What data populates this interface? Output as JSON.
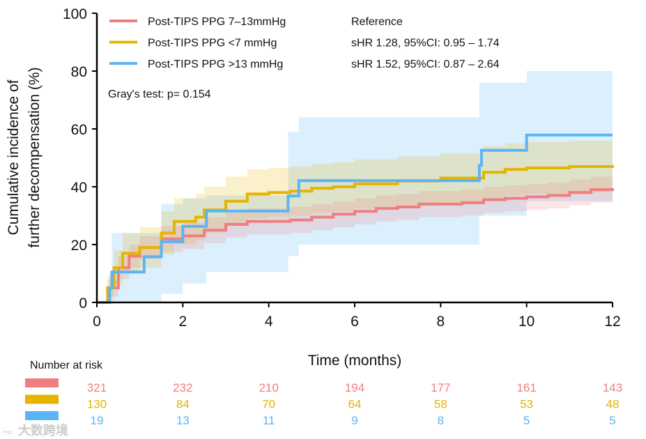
{
  "chart_data": {
    "type": "line",
    "subtype": "step cumulative incidence with 95% CI bands",
    "xlabel": "Time (months)",
    "ylabel_lines": [
      "Cumulative incidence of",
      "further decompensation (%)"
    ],
    "xlim": [
      0,
      12
    ],
    "ylim": [
      0,
      100
    ],
    "xticks": [
      0,
      2,
      4,
      6,
      8,
      10,
      12
    ],
    "yticks": [
      0,
      20,
      40,
      60,
      80,
      100
    ],
    "grid": false,
    "legend_position": "top-left",
    "annotation": "Gray's test: p= 0.154",
    "series": [
      {
        "name": "Post-TIPS PPG 7–13mmHg",
        "stat": "Reference",
        "color": "#ef7f7f",
        "x": [
          0,
          0.25,
          0.5,
          0.75,
          1,
          1.5,
          2,
          2.5,
          3,
          3.5,
          4,
          4.5,
          5,
          5.5,
          6,
          6.5,
          7,
          7.5,
          8,
          8.5,
          9,
          9.5,
          10,
          10.5,
          11,
          11.5,
          12
        ],
        "y": [
          0,
          5,
          12,
          16,
          19,
          22,
          23,
          25,
          27,
          28,
          28,
          28.5,
          29.5,
          30.5,
          31.5,
          32.5,
          33,
          34,
          34,
          34.5,
          35.5,
          36,
          36.5,
          37,
          38,
          39,
          39.5
        ],
        "lower": [
          0,
          2,
          8,
          12,
          15,
          17.5,
          18.5,
          20.5,
          22.5,
          23.5,
          23.5,
          24,
          25,
          26,
          27,
          28,
          28.5,
          29.5,
          29.5,
          30,
          31,
          31.5,
          32,
          32.5,
          33.5,
          34.5,
          35
        ],
        "upper": [
          0,
          8,
          16,
          20,
          23,
          26.5,
          27.5,
          29.5,
          31.5,
          32.5,
          32.5,
          33,
          34,
          35,
          36,
          37,
          37.5,
          38.5,
          38.5,
          39,
          40,
          40.5,
          41,
          41.5,
          42.5,
          43.5,
          44
        ]
      },
      {
        "name": "Post-TIPS PPG <7 mmHg",
        "stat": "sHR 1.28, 95%CI: 0.95 – 1.74",
        "color": "#e6b400",
        "x": [
          0,
          0.25,
          0.4,
          0.6,
          1,
          1.5,
          1.8,
          2.3,
          2.5,
          3,
          3.5,
          4,
          4.5,
          5,
          5.5,
          6,
          7,
          8,
          9,
          9.5,
          10,
          11,
          12
        ],
        "y": [
          0,
          5,
          12,
          17,
          19,
          24,
          28,
          29.5,
          32,
          35,
          37.5,
          38,
          38.5,
          39.5,
          40,
          41,
          42,
          43,
          45,
          46,
          46.5,
          47,
          47.5
        ],
        "lower": [
          0,
          1,
          6,
          10,
          12,
          16.5,
          20,
          21.5,
          24,
          26.5,
          29,
          29.5,
          30,
          31,
          31.5,
          32.5,
          33.5,
          34.5,
          36,
          37,
          37.5,
          38,
          38.5
        ],
        "upper": [
          0,
          9,
          18,
          24,
          26,
          31.5,
          36,
          37.5,
          40,
          43.5,
          46,
          46.5,
          47,
          48,
          48.5,
          49.5,
          50.5,
          51.5,
          54,
          55,
          55.5,
          56,
          56.5
        ]
      },
      {
        "name": "Post-TIPS PPG >13 mmHg",
        "stat": "sHR 1.52, 95%CI: 0.87 – 2.64",
        "color": "#5ab4f5",
        "x": [
          0,
          0.3,
          0.35,
          1.1,
          1.5,
          2,
          2.55,
          4.45,
          4.7,
          8.9,
          8.95,
          10,
          12
        ],
        "y": [
          0,
          5,
          10.5,
          15.8,
          21,
          26.3,
          31.6,
          36.8,
          42.1,
          47.4,
          52.6,
          57.9,
          57.9
        ],
        "lower": [
          0,
          0,
          0,
          0,
          3,
          6.5,
          10.5,
          16,
          20,
          30,
          30,
          35,
          35
        ],
        "upper": [
          0,
          10,
          24,
          24,
          34,
          36,
          37,
          59,
          64,
          76,
          76,
          80,
          80
        ]
      }
    ],
    "risk_table": {
      "title": "Number at risk",
      "times": [
        0,
        2,
        4,
        6,
        8,
        10,
        12
      ],
      "rows": [
        [
          321,
          232,
          210,
          194,
          177,
          161,
          143
        ],
        [
          130,
          84,
          70,
          64,
          58,
          53,
          48
        ],
        [
          19,
          13,
          11,
          9,
          8,
          5,
          5
        ]
      ]
    }
  },
  "watermark": "大数跨境"
}
